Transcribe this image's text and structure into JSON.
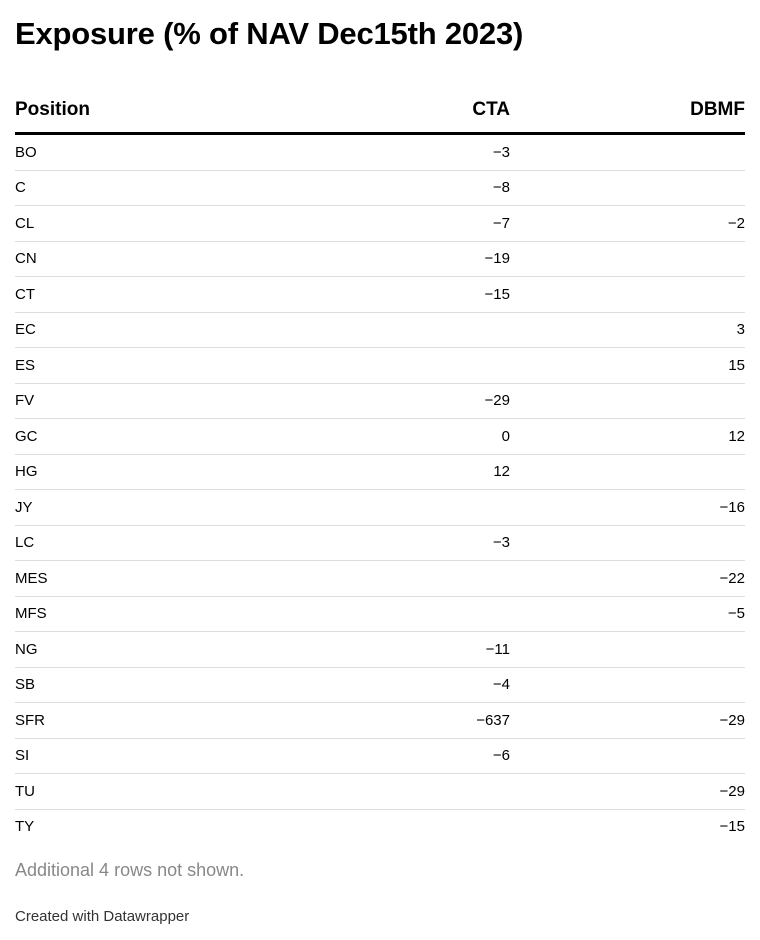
{
  "chart_data": {
    "type": "table",
    "title": "Exposure (% of NAV Dec15th 2023)",
    "columns": [
      "Position",
      "CTA",
      "DBMF"
    ],
    "rows": [
      {
        "position": "BO",
        "cta": "−3",
        "dbmf": ""
      },
      {
        "position": "C",
        "cta": "−8",
        "dbmf": ""
      },
      {
        "position": "CL",
        "cta": "−7",
        "dbmf": "−2"
      },
      {
        "position": "CN",
        "cta": "−19",
        "dbmf": ""
      },
      {
        "position": "CT",
        "cta": "−15",
        "dbmf": ""
      },
      {
        "position": "EC",
        "cta": "",
        "dbmf": "3"
      },
      {
        "position": "ES",
        "cta": "",
        "dbmf": "15"
      },
      {
        "position": "FV",
        "cta": "−29",
        "dbmf": ""
      },
      {
        "position": "GC",
        "cta": "0",
        "dbmf": "12"
      },
      {
        "position": "HG",
        "cta": "12",
        "dbmf": ""
      },
      {
        "position": "JY",
        "cta": "",
        "dbmf": "−16"
      },
      {
        "position": "LC",
        "cta": "−3",
        "dbmf": ""
      },
      {
        "position": "MES",
        "cta": "",
        "dbmf": "−22"
      },
      {
        "position": "MFS",
        "cta": "",
        "dbmf": "−5"
      },
      {
        "position": "NG",
        "cta": "−11",
        "dbmf": ""
      },
      {
        "position": "SB",
        "cta": "−4",
        "dbmf": ""
      },
      {
        "position": "SFR",
        "cta": "−637",
        "dbmf": "−29"
      },
      {
        "position": "SI",
        "cta": "−6",
        "dbmf": ""
      },
      {
        "position": "TU",
        "cta": "",
        "dbmf": "−29"
      },
      {
        "position": "TY",
        "cta": "",
        "dbmf": "−15"
      }
    ],
    "note": "Additional 4 rows not shown."
  },
  "footer": {
    "credit": "Created with Datawrapper"
  }
}
